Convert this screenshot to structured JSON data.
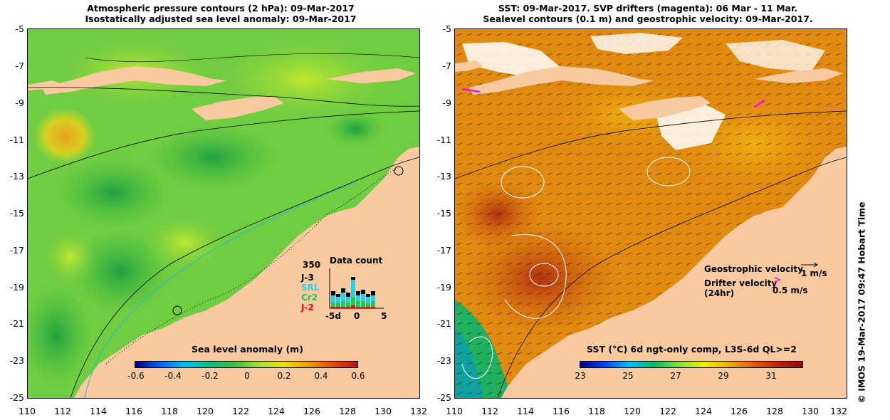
{
  "left_panel": {
    "title_line1": "Atmospheric pressure contours (2 hPa): 09-Mar-2017",
    "title_line2": "Isostatically adjusted sea level anomaly: 09-Mar-2017",
    "colorbar_label": "Sea level anomaly (m)",
    "colorbar_ticks": [
      "-0.6",
      "-0.4",
      "-0.2",
      "0",
      "0.2",
      "0.4",
      "0.6"
    ],
    "data_count": {
      "title": "Data count",
      "max": "350",
      "legend": [
        {
          "name": "J-3",
          "color": "#000000"
        },
        {
          "name": "SRL",
          "color": "#22d3ee"
        },
        {
          "name": "Cr2",
          "color": "#22c55e"
        },
        {
          "name": "J-2",
          "color": "#ff0000"
        }
      ],
      "x_ticks": [
        "-5d",
        "0",
        "5"
      ]
    }
  },
  "right_panel": {
    "title_line1": "SST: 09-Mar-2017. SVP drifters (magenta): 06 Mar - 11 Mar.",
    "title_line2": "Sealevel contours (0.1 m) and geostrophic velocity: 09-Mar-2017.",
    "geostrophic_label": "Geostrophic velocity",
    "geostrophic_scale": "1 m/s",
    "drifter_label": "Drifter velocity",
    "drifter_sub": "(24hr)",
    "drifter_scale": "0.5 m/s",
    "colorbar_label": "SST (°C) 6d ngt-only comp, L3S-6d QL>=2",
    "colorbar_ticks": [
      "23",
      "25",
      "27",
      "29",
      "31"
    ]
  },
  "axes": {
    "lat_ticks": [
      "-5",
      "-7",
      "-9",
      "-11",
      "-13",
      "-15",
      "-17",
      "-19",
      "-21",
      "-23",
      "-25"
    ],
    "lon_ticks": [
      "110",
      "112",
      "114",
      "116",
      "118",
      "120",
      "122",
      "124",
      "126",
      "128",
      "130",
      "132"
    ]
  },
  "credit": "© IMOS 19-Mar-2017 09:47 Hobart Time",
  "colors": {
    "land": "#f9c9a0",
    "sla_ramp": [
      "#000080",
      "#0060ff",
      "#00c0ff",
      "#00c080",
      "#40c040",
      "#a0e040",
      "#f0e000",
      "#f0a000",
      "#e05000",
      "#c01010"
    ],
    "sst_ramp": [
      "#000080",
      "#0040ff",
      "#00c0ff",
      "#00c060",
      "#80e040",
      "#f0f000",
      "#f0b000",
      "#e06000",
      "#c02000",
      "#901000"
    ],
    "drifter": "#ff00ff"
  }
}
